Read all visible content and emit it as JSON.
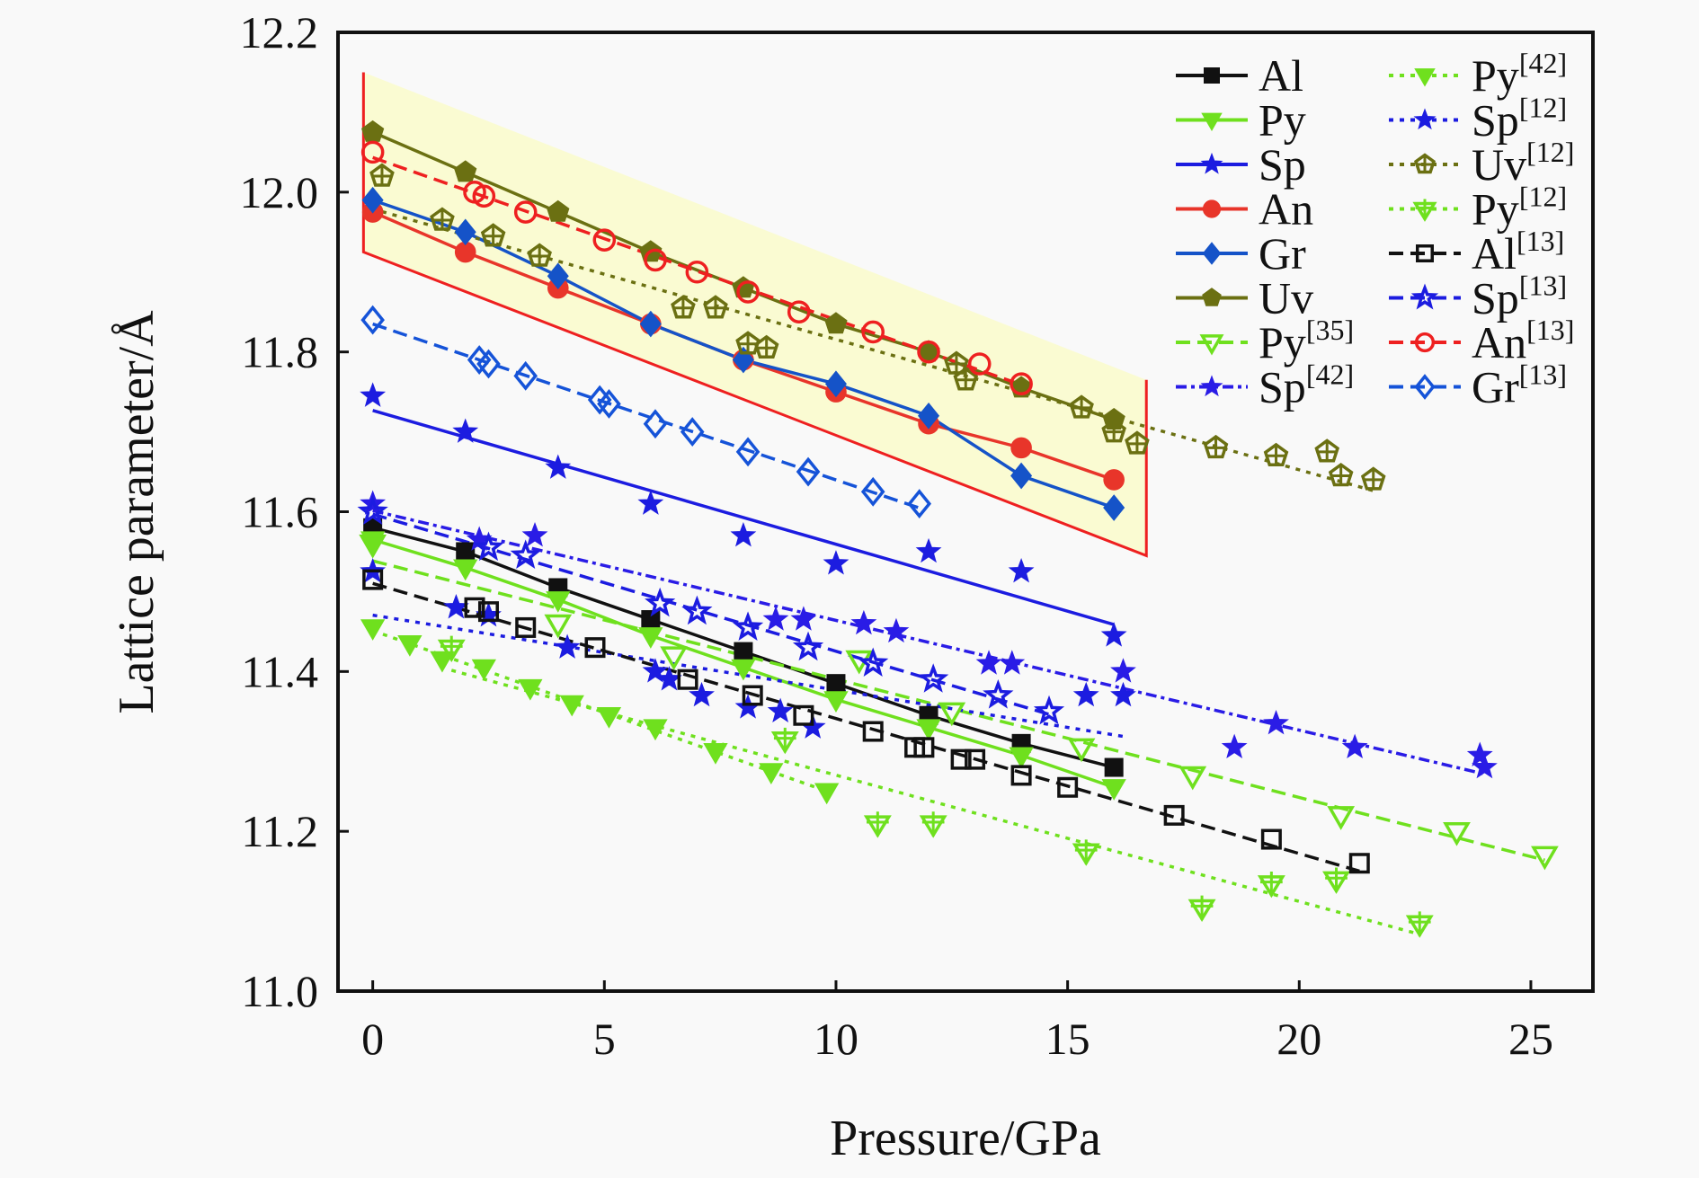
{
  "chart_data": {
    "type": "scatter",
    "title": "",
    "xlabel": "Pressure/GPa",
    "ylabel": "Lattice parameter/Å",
    "xlim": [
      -0.75,
      26.34
    ],
    "ylim": [
      11.0,
      12.2
    ],
    "xticks": [
      0,
      5,
      10,
      15,
      20,
      25
    ],
    "yticks": [
      "11.0",
      "11.2",
      "11.4",
      "11.6",
      "11.8",
      "12.0",
      "12.2"
    ],
    "grid": false,
    "legend_position": "top-right",
    "shaded_region": {
      "fill": "#fafbd2",
      "outline": "#ee2020",
      "corners": [
        [
          -0.2,
          12.15
        ],
        [
          16.7,
          11.765
        ],
        [
          16.7,
          11.545
        ],
        [
          -0.2,
          11.925
        ]
      ]
    },
    "series": [
      {
        "name": "Al",
        "ref": "",
        "color": "#111111",
        "marker": "square",
        "filled": true,
        "line": "solid",
        "fit": "connect",
        "x": [
          0,
          2,
          4,
          6,
          8,
          10,
          12,
          14,
          16
        ],
        "y": [
          11.58,
          11.55,
          11.505,
          11.465,
          11.425,
          11.385,
          11.345,
          11.31,
          11.28
        ]
      },
      {
        "name": "Py",
        "ref": "",
        "color": "#6fe01e",
        "marker": "tri-down",
        "filled": true,
        "line": "solid",
        "fit": "connect",
        "x": [
          0,
          2,
          4,
          6,
          8,
          10,
          12,
          14,
          16
        ],
        "y": [
          11.565,
          11.53,
          11.49,
          11.445,
          11.405,
          11.365,
          11.33,
          11.295,
          11.255
        ]
      },
      {
        "name": "Sp",
        "ref": "",
        "color": "#1c1ce0",
        "marker": "star",
        "filled": true,
        "line": "solid",
        "fit": "linear",
        "x": [
          0,
          2,
          4,
          6,
          8,
          10,
          12,
          14,
          16
        ],
        "y": [
          11.745,
          11.7,
          11.655,
          11.61,
          11.57,
          11.535,
          11.55,
          11.525,
          11.445
        ]
      },
      {
        "name": "An",
        "ref": "",
        "color": "#e8352a",
        "marker": "circle",
        "filled": true,
        "line": "solid",
        "fit": "connect",
        "x": [
          0,
          2,
          4,
          6,
          8,
          10,
          12,
          14,
          16
        ],
        "y": [
          11.975,
          11.925,
          11.88,
          11.835,
          11.79,
          11.75,
          11.71,
          11.68,
          11.64
        ]
      },
      {
        "name": "Gr",
        "ref": "",
        "color": "#1553c8",
        "marker": "diamond",
        "filled": true,
        "line": "solid",
        "fit": "connect",
        "x": [
          0,
          2,
          4,
          6,
          8,
          10,
          12,
          14,
          16
        ],
        "y": [
          11.99,
          11.95,
          11.895,
          11.835,
          11.79,
          11.76,
          11.72,
          11.645,
          11.605
        ]
      },
      {
        "name": "Uv",
        "ref": "",
        "color": "#6b7012",
        "marker": "pentagon",
        "filled": true,
        "line": "solid",
        "fit": "connect",
        "x": [
          0,
          2,
          4,
          6,
          8,
          10,
          12,
          14,
          16
        ],
        "y": [
          12.075,
          12.025,
          11.975,
          11.925,
          11.88,
          11.835,
          11.8,
          11.755,
          11.715
        ]
      },
      {
        "name": "Py",
        "ref": "[35]",
        "color": "#6fe01e",
        "marker": "tri-down",
        "filled": false,
        "line": "dash",
        "fit": "linear",
        "x": [
          0,
          4,
          6.5,
          10.5,
          12.5,
          15.3,
          17.7,
          20.9,
          23.4,
          25.3
        ],
        "y": [
          11.56,
          11.46,
          11.42,
          11.415,
          11.35,
          11.305,
          11.27,
          11.22,
          11.2,
          11.17
        ]
      },
      {
        "name": "Sp",
        "ref": "[42]",
        "color": "#2a1ce6",
        "marker": "star",
        "filled": true,
        "line": "dashdot",
        "fit": "linear",
        "x": [
          0,
          2.3,
          3.5,
          8.7,
          9.3,
          10.6,
          11.3,
          13.3,
          13.8,
          16.2,
          18.6,
          19.5,
          21.2,
          23.9,
          24.0
        ],
        "y": [
          11.61,
          11.565,
          11.57,
          11.465,
          11.465,
          11.46,
          11.45,
          11.41,
          11.41,
          11.4,
          11.305,
          11.335,
          11.305,
          11.295,
          11.28
        ]
      },
      {
        "name": "Py",
        "ref": "[42]",
        "color": "#6fe01e",
        "marker": "tri-down",
        "filled": true,
        "line": "dot",
        "fit": "linear",
        "x": [
          0,
          0.8,
          1.5,
          2.4,
          3.4,
          4.3,
          5.1,
          6.1,
          7.4,
          8.6,
          9.8
        ],
        "y": [
          11.455,
          11.435,
          11.415,
          11.405,
          11.38,
          11.36,
          11.345,
          11.33,
          11.3,
          11.275,
          11.25
        ]
      },
      {
        "name": "Sp",
        "ref": "[12]",
        "color": "#1c1ce0",
        "marker": "star",
        "filled": true,
        "line": "dot",
        "fit": "linear",
        "x": [
          0,
          1.8,
          2.5,
          4.2,
          6.1,
          6.4,
          7.1,
          8.1,
          8.8,
          9.5,
          15.4,
          16.2
        ],
        "y": [
          11.525,
          11.48,
          11.47,
          11.43,
          11.4,
          11.39,
          11.37,
          11.355,
          11.35,
          11.33,
          11.37,
          11.37
        ]
      },
      {
        "name": "Uv",
        "ref": "[12]",
        "color": "#6b7012",
        "marker": "pentagon-cross",
        "filled": false,
        "line": "dot",
        "fit": "linear",
        "x": [
          0.2,
          1.5,
          2.6,
          3.6,
          6.7,
          7.4,
          8.1,
          8.5,
          12.6,
          12.8,
          15.3,
          16.0,
          16.5,
          18.2,
          19.5,
          20.6,
          20.9,
          21.6
        ],
        "y": [
          12.02,
          11.965,
          11.945,
          11.92,
          11.855,
          11.855,
          11.81,
          11.805,
          11.785,
          11.765,
          11.73,
          11.7,
          11.685,
          11.68,
          11.67,
          11.675,
          11.645,
          11.64
        ]
      },
      {
        "name": "Py",
        "ref": "[12]",
        "color": "#6fe01e",
        "marker": "tri-cross",
        "filled": false,
        "line": "dot",
        "fit": "linear",
        "x": [
          1.7,
          8.9,
          10.9,
          12.1,
          15.4,
          17.9,
          19.4,
          20.8,
          22.6
        ],
        "y": [
          11.43,
          11.315,
          11.21,
          11.21,
          11.175,
          11.105,
          11.135,
          11.14,
          11.085
        ]
      },
      {
        "name": "Al",
        "ref": "[13]",
        "color": "#111111",
        "marker": "square",
        "filled": false,
        "line": "dash",
        "fit": "linear",
        "x": [
          0,
          2.2,
          2.5,
          3.3,
          4.8,
          6.8,
          8.2,
          9.3,
          10.8,
          11.7,
          11.9,
          12.7,
          13.0,
          14.0,
          15.0,
          17.3,
          19.4,
          21.3
        ],
        "y": [
          11.515,
          11.48,
          11.475,
          11.455,
          11.43,
          11.39,
          11.37,
          11.345,
          11.325,
          11.305,
          11.305,
          11.29,
          11.29,
          11.27,
          11.255,
          11.22,
          11.19,
          11.16
        ]
      },
      {
        "name": "Sp",
        "ref": "[13]",
        "color": "#1c1ce0",
        "marker": "star",
        "filled": false,
        "line": "dash",
        "fit": "linear",
        "x": [
          0,
          2.5,
          3.3,
          6.2,
          7.0,
          8.1,
          9.4,
          10.8,
          12.1,
          13.5,
          14.6
        ],
        "y": [
          11.6,
          11.555,
          11.545,
          11.485,
          11.475,
          11.455,
          11.43,
          11.41,
          11.39,
          11.37,
          11.35
        ]
      },
      {
        "name": "An",
        "ref": "[13]",
        "color": "#ee2020",
        "marker": "circle",
        "filled": false,
        "line": "dash",
        "fit": "linear",
        "x": [
          0,
          2.2,
          2.4,
          3.3,
          5.0,
          6.1,
          7.0,
          8.1,
          9.2,
          10.8,
          12.0,
          13.1,
          14.0
        ],
        "y": [
          12.05,
          12.0,
          11.995,
          11.975,
          11.94,
          11.915,
          11.9,
          11.875,
          11.85,
          11.825,
          11.8,
          11.785,
          11.76
        ]
      },
      {
        "name": "Gr",
        "ref": "[13]",
        "color": "#1553d8",
        "marker": "diamond",
        "filled": false,
        "line": "dash",
        "fit": "linear",
        "x": [
          0,
          2.3,
          2.5,
          3.3,
          4.9,
          5.1,
          6.1,
          6.9,
          8.1,
          9.4,
          10.8,
          11.8
        ],
        "y": [
          11.84,
          11.79,
          11.785,
          11.77,
          11.74,
          11.735,
          11.71,
          11.7,
          11.675,
          11.65,
          11.625,
          11.61
        ]
      }
    ]
  }
}
